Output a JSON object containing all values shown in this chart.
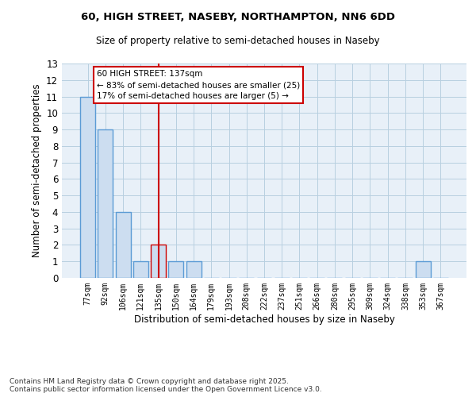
{
  "title_line1": "60, HIGH STREET, NASEBY, NORTHAMPTON, NN6 6DD",
  "title_line2": "Size of property relative to semi-detached houses in Naseby",
  "xlabel": "Distribution of semi-detached houses by size in Naseby",
  "ylabel": "Number of semi-detached properties",
  "categories": [
    "77sqm",
    "92sqm",
    "106sqm",
    "121sqm",
    "135sqm",
    "150sqm",
    "164sqm",
    "179sqm",
    "193sqm",
    "208sqm",
    "222sqm",
    "237sqm",
    "251sqm",
    "266sqm",
    "280sqm",
    "295sqm",
    "309sqm",
    "324sqm",
    "338sqm",
    "353sqm",
    "367sqm"
  ],
  "values": [
    11,
    9,
    4,
    1,
    2,
    1,
    1,
    0,
    0,
    0,
    0,
    0,
    0,
    0,
    0,
    0,
    0,
    0,
    0,
    1,
    0
  ],
  "bar_color": "#ccddf0",
  "bar_edge_color": "#5b9bd5",
  "highlight_index": 4,
  "highlight_bar_color": "#ccddf0",
  "highlight_bar_edge_color": "#cc0000",
  "highlight_line_color": "#cc0000",
  "annotation_text": "60 HIGH STREET: 137sqm\n← 83% of semi-detached houses are smaller (25)\n17% of semi-detached houses are larger (5) →",
  "annotation_box_edge_color": "#cc0000",
  "annotation_box_face_color": "#ffffff",
  "ylim": [
    0,
    13
  ],
  "yticks": [
    0,
    1,
    2,
    3,
    4,
    5,
    6,
    7,
    8,
    9,
    10,
    11,
    12,
    13
  ],
  "grid_color": "#b8cfe0",
  "bg_color": "#e8f0f8",
  "footnote": "Contains HM Land Registry data © Crown copyright and database right 2025.\nContains public sector information licensed under the Open Government Licence v3.0."
}
